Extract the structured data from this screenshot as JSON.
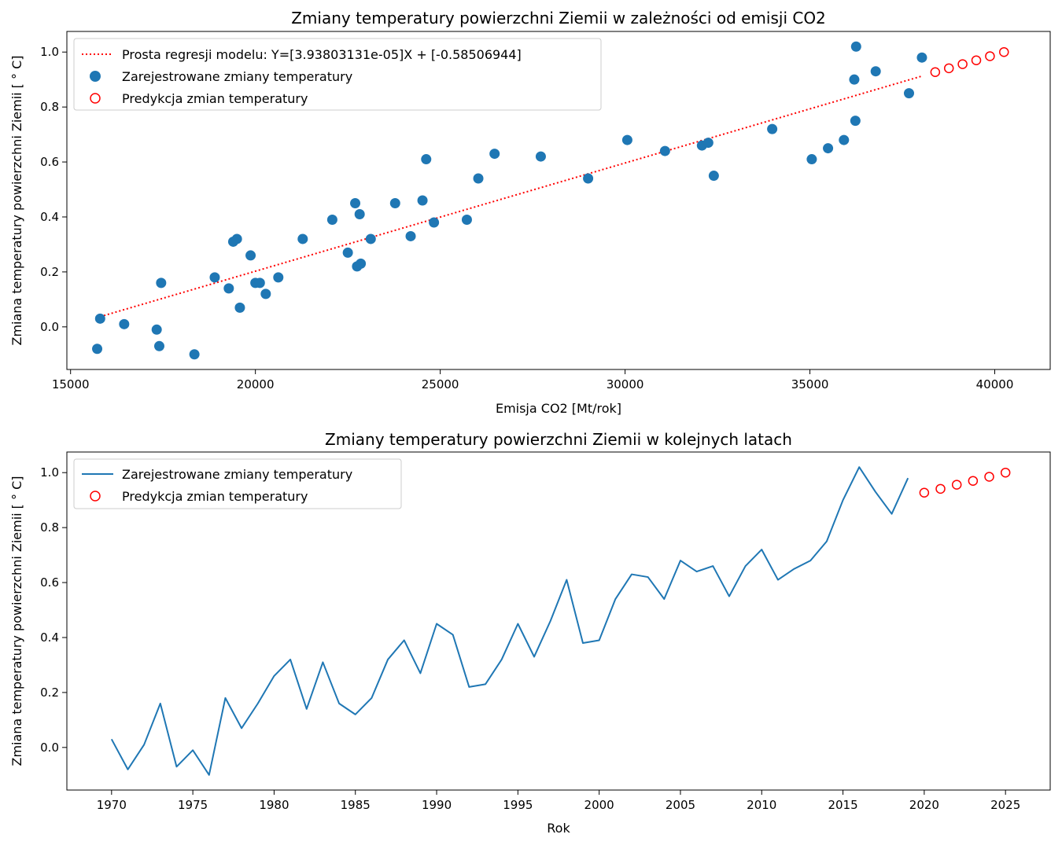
{
  "chart_data": [
    {
      "type": "scatter",
      "title": "Zmiany temperatury powierzchni Ziemii w zależności od emisji CO2",
      "xlabel": "Emisja CO2 [Mt/rok]",
      "ylabel": "Zmiana temperatury powierzchni Ziemii [ ° C]",
      "xlim": [
        14900,
        41500
      ],
      "ylim": [
        -0.155,
        1.075
      ],
      "xticks": [
        15000,
        20000,
        25000,
        30000,
        35000,
        40000
      ],
      "yticks": [
        0.0,
        0.2,
        0.4,
        0.6,
        0.8,
        1.0
      ],
      "legend_position": "upper-left",
      "grid": false,
      "colors": {
        "observed": "#1f77b4",
        "prediction": "#ff0000",
        "regression": "#ff0000"
      },
      "regression": {
        "name": "Prosta regresji modelu: Y=[3.93803131e-05]X + [-0.58506944]",
        "slope": 3.93803131e-05,
        "intercept": -0.58506944,
        "x_range": [
          15800,
          38050
        ]
      },
      "series": [
        {
          "name": "Zarejestrowane zmiany temperatury",
          "marker": "filled-circle",
          "points": [
            [
              15800,
              0.03
            ],
            [
              15720,
              -0.08
            ],
            [
              16450,
              0.01
            ],
            [
              17450,
              0.16
            ],
            [
              17330,
              -0.01
            ],
            [
              17400,
              -0.07
            ],
            [
              18350,
              -0.1
            ],
            [
              18900,
              0.18
            ],
            [
              19280,
              0.14
            ],
            [
              19400,
              0.31
            ],
            [
              19500,
              0.32
            ],
            [
              19580,
              0.07
            ],
            [
              19870,
              0.26
            ],
            [
              20000,
              0.16
            ],
            [
              20120,
              0.16
            ],
            [
              20280,
              0.12
            ],
            [
              20620,
              0.18
            ],
            [
              21280,
              0.32
            ],
            [
              22080,
              0.39
            ],
            [
              22500,
              0.27
            ],
            [
              22700,
              0.45
            ],
            [
              22750,
              0.22
            ],
            [
              22820,
              0.41
            ],
            [
              22850,
              0.23
            ],
            [
              23120,
              0.32
            ],
            [
              23780,
              0.45
            ],
            [
              24200,
              0.33
            ],
            [
              24520,
              0.46
            ],
            [
              24620,
              0.61
            ],
            [
              24830,
              0.38
            ],
            [
              25720,
              0.39
            ],
            [
              26030,
              0.54
            ],
            [
              26470,
              0.63
            ],
            [
              27720,
              0.62
            ],
            [
              29000,
              0.54
            ],
            [
              30060,
              0.68
            ],
            [
              31080,
              0.64
            ],
            [
              32080,
              0.66
            ],
            [
              32250,
              0.67
            ],
            [
              32400,
              0.55
            ],
            [
              33980,
              0.72
            ],
            [
              35050,
              0.61
            ],
            [
              35490,
              0.65
            ],
            [
              35920,
              0.68
            ],
            [
              36200,
              0.9
            ],
            [
              36250,
              1.02
            ],
            [
              36230,
              0.75
            ],
            [
              36780,
              0.93
            ],
            [
              37680,
              0.85
            ],
            [
              38030,
              0.98
            ]
          ]
        },
        {
          "name": "Predykcja zmian temperatury",
          "marker": "hollow-circle",
          "points": [
            [
              38390,
              0.927
            ],
            [
              38760,
              0.941
            ],
            [
              39130,
              0.956
            ],
            [
              39500,
              0.97
            ],
            [
              39870,
              0.985
            ],
            [
              40250,
              1.0
            ]
          ]
        }
      ]
    },
    {
      "type": "line",
      "title": "Zmiany temperatury powierzchni Ziemii w kolejnych latach",
      "xlabel": "Rok",
      "ylabel": "Zmiana temperatury powierzchni Ziemii [ ° C]",
      "xlim": [
        1967.25,
        2027.75
      ],
      "ylim": [
        -0.155,
        1.075
      ],
      "xticks": [
        1970,
        1975,
        1980,
        1985,
        1990,
        1995,
        2000,
        2005,
        2010,
        2015,
        2020,
        2025
      ],
      "yticks": [
        0.0,
        0.2,
        0.4,
        0.6,
        0.8,
        1.0
      ],
      "legend_position": "upper-left",
      "grid": false,
      "colors": {
        "observed": "#1f77b4",
        "prediction": "#ff0000"
      },
      "series": [
        {
          "name": "Zarejestrowane zmiany temperatury",
          "style": "line",
          "x": [
            1970,
            1971,
            1972,
            1973,
            1974,
            1975,
            1976,
            1977,
            1978,
            1979,
            1980,
            1981,
            1982,
            1983,
            1984,
            1985,
            1986,
            1987,
            1988,
            1989,
            1990,
            1991,
            1992,
            1993,
            1994,
            1995,
            1996,
            1997,
            1998,
            1999,
            2000,
            2001,
            2002,
            2003,
            2004,
            2005,
            2006,
            2007,
            2008,
            2009,
            2010,
            2011,
            2012,
            2013,
            2014,
            2015,
            2016,
            2017,
            2018,
            2019
          ],
          "values": [
            0.03,
            -0.08,
            0.01,
            0.16,
            -0.07,
            -0.01,
            -0.1,
            0.18,
            0.07,
            0.16,
            0.26,
            0.32,
            0.14,
            0.31,
            0.16,
            0.12,
            0.18,
            0.32,
            0.39,
            0.27,
            0.45,
            0.41,
            0.22,
            0.23,
            0.32,
            0.45,
            0.33,
            0.46,
            0.61,
            0.38,
            0.39,
            0.54,
            0.63,
            0.62,
            0.54,
            0.68,
            0.64,
            0.66,
            0.55,
            0.66,
            0.72,
            0.61,
            0.65,
            0.68,
            0.75,
            0.9,
            1.02,
            0.93,
            0.85,
            0.98
          ]
        },
        {
          "name": "Predykcja zmian temperatury",
          "style": "hollow-circle",
          "x": [
            2020,
            2021,
            2022,
            2023,
            2024,
            2025
          ],
          "values": [
            0.927,
            0.941,
            0.956,
            0.97,
            0.985,
            1.0
          ]
        }
      ]
    }
  ]
}
